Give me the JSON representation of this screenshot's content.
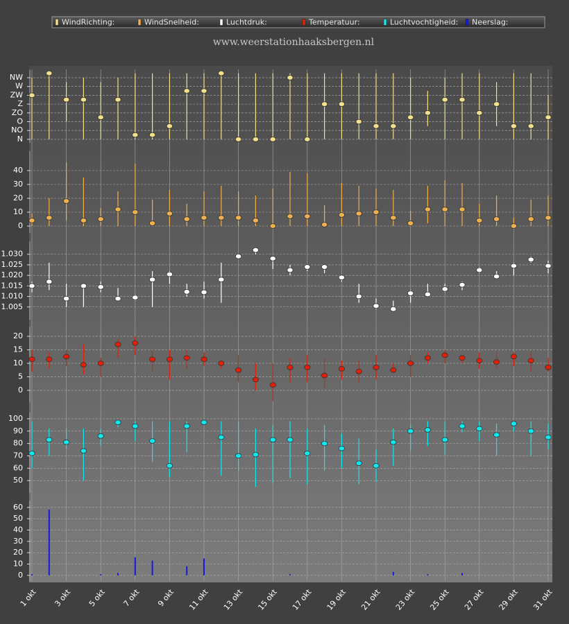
{
  "chart_data": [
    {
      "type": "errorbar",
      "subtitle": "www.weerstationhaaksbergen.nl",
      "series": [
        {
          "name": "WindRichting:",
          "color": "#f2e08a",
          "values": [
            5,
            7.5,
            4.5,
            4.5,
            2.5,
            4.5,
            0.5,
            0.5,
            1.5,
            5.5,
            5.5,
            7.5,
            0,
            0,
            0,
            7,
            0,
            4,
            4,
            2,
            1.5,
            1.5,
            2.5,
            3,
            4.5,
            4.5,
            3,
            4,
            1.5,
            1.5,
            2.5
          ],
          "low": [
            0,
            0,
            2,
            0,
            0,
            0,
            0,
            0,
            0,
            0,
            0,
            0,
            0,
            0,
            0,
            0,
            0,
            0,
            0,
            0,
            0,
            0,
            0,
            1.5,
            0,
            0,
            0,
            1.5,
            0,
            0,
            0
          ],
          "high": [
            7,
            7.5,
            6.5,
            7,
            6.5,
            7,
            7.5,
            7.5,
            7.5,
            7.5,
            7.5,
            7.5,
            7.5,
            7.5,
            7.5,
            7.5,
            7.5,
            7.5,
            7.5,
            7.5,
            7.5,
            7.5,
            7,
            5.5,
            7,
            7.5,
            7.5,
            6.5,
            7.5,
            7.5,
            5
          ]
        }
      ],
      "ylim": [
        -0.4,
        7.9
      ],
      "yticks": [
        {
          "value": 0,
          "label": "N"
        },
        {
          "value": 1,
          "label": "NO"
        },
        {
          "value": 2,
          "label": "O"
        },
        {
          "value": 3,
          "label": "ZO"
        },
        {
          "value": 4,
          "label": "Z"
        },
        {
          "value": 5,
          "label": "ZW"
        },
        {
          "value": 6,
          "label": "W"
        },
        {
          "value": 7,
          "label": "NW"
        }
      ],
      "grid": true
    },
    {
      "type": "errorbar",
      "series": [
        {
          "name": "WindSnelheid:",
          "color": "#f0b050",
          "values": [
            4,
            6,
            18,
            4,
            5,
            12,
            10,
            2,
            9,
            5,
            6,
            6,
            6,
            4,
            0,
            7,
            7,
            1,
            8,
            9,
            10,
            6,
            2,
            12,
            12,
            12,
            4,
            5,
            0,
            5,
            6
          ],
          "low": [
            0,
            0,
            4,
            0,
            0,
            0,
            0,
            0,
            0,
            0,
            0,
            0,
            0,
            0,
            0,
            0,
            0,
            0,
            0,
            0,
            0,
            0,
            0,
            2,
            0,
            0,
            0,
            0,
            0,
            0,
            0
          ],
          "high": [
            9,
            20,
            46,
            35,
            13,
            25,
            45,
            19,
            26,
            16,
            25,
            29,
            25,
            22,
            27,
            39,
            38,
            15,
            31,
            29,
            27,
            26,
            11,
            29,
            33,
            31,
            16,
            22,
            6,
            19,
            22
          ]
        }
      ],
      "ylim": [
        -5,
        54
      ],
      "yticks": [
        0,
        10,
        20,
        30,
        40
      ],
      "grid": true
    },
    {
      "type": "errorbar",
      "series": [
        {
          "name": "Luchtdruk:",
          "color": "#ffffff",
          "values": [
            1.015,
            1.017,
            1.009,
            1.015,
            1.0145,
            1.009,
            1.0095,
            1.018,
            1.0205,
            1.0122,
            1.012,
            1.018,
            1.029,
            1.032,
            1.028,
            1.0225,
            1.024,
            1.024,
            1.019,
            1.01,
            1.0055,
            1.004,
            1.0115,
            1.011,
            1.0135,
            1.0155,
            1.0225,
            1.0195,
            1.0245,
            1.0275,
            1.0245
          ],
          "low": [
            1.012,
            1.013,
            1.005,
            1.005,
            1.012,
            1.008,
            1.008,
            1.005,
            1.016,
            1.01,
            1.009,
            1.007,
            1.028,
            1.03,
            1.023,
            1.02,
            1.022,
            1.021,
            1.017,
            1.007,
            1.004,
            1.003,
            1.007,
            1.01,
            1.012,
            1.013,
            1.021,
            1.019,
            1.02,
            1.026,
            1.021
          ],
          "high": [
            1.017,
            1.026,
            1.016,
            1.016,
            1.017,
            1.014,
            1.011,
            1.022,
            1.022,
            1.016,
            1.017,
            1.026,
            1.03,
            1.033,
            1.029,
            1.025,
            1.025,
            1.025,
            1.02,
            1.016,
            1.009,
            1.008,
            1.013,
            1.016,
            1.016,
            1.017,
            1.024,
            1.022,
            1.026,
            1.029,
            1.027
          ]
        }
      ],
      "ylim": [
        0.999,
        1.036
      ],
      "yticks": [
        1.005,
        {
          "value": 1.01,
          "label": "1.010"
        },
        1.015,
        {
          "value": 1.02,
          "label": "1.020"
        },
        1.025,
        {
          "value": 1.03,
          "label": "1.030"
        }
      ],
      "grid": true
    },
    {
      "type": "errorbar",
      "series": [
        {
          "name": "Temperatuur:",
          "color": "#e02008",
          "values": [
            11.5,
            11.5,
            12.5,
            9.5,
            10,
            17,
            17.5,
            11.5,
            11.5,
            12,
            11.5,
            10,
            7.5,
            4,
            2,
            8.5,
            8.5,
            5.5,
            8,
            7,
            8.5,
            7.5,
            10,
            12,
            13,
            12,
            11,
            10.5,
            12.5,
            11,
            8.5
          ],
          "low": [
            7,
            8,
            9,
            6,
            5,
            12,
            13,
            7,
            4,
            8,
            9,
            8,
            3,
            0,
            -4,
            3,
            3,
            1,
            4,
            3,
            4,
            7,
            5,
            10,
            10,
            10,
            8,
            8,
            9,
            7,
            7
          ],
          "high": [
            15,
            14,
            15,
            17,
            12,
            19,
            20,
            15,
            15,
            15,
            14,
            11,
            13,
            10,
            10,
            12,
            13,
            12,
            11,
            11,
            13,
            10,
            13,
            14,
            15,
            13,
            14,
            14,
            14,
            14,
            12
          ]
        }
      ],
      "ylim": [
        -4.5,
        23.5
      ],
      "yticks": [
        0,
        5,
        10,
        15,
        20
      ],
      "grid": true
    },
    {
      "type": "errorbar",
      "series": [
        {
          "name": "Luchtvochtigheid:",
          "color": "#10e8f0",
          "values": [
            72,
            83,
            81,
            74,
            86,
            97,
            94,
            82,
            62,
            94,
            97,
            85,
            70,
            71,
            83,
            83,
            72,
            80,
            76,
            64,
            62,
            81,
            90,
            91,
            83,
            94,
            92,
            87,
            96,
            90,
            85
          ],
          "low": [
            60,
            70,
            76,
            50,
            78,
            93,
            82,
            65,
            53,
            73,
            95,
            54,
            58,
            45,
            48,
            52,
            47,
            58,
            60,
            47,
            49,
            62,
            74,
            78,
            71,
            89,
            82,
            70,
            90,
            70,
            75
          ],
          "high": [
            98,
            92,
            92,
            92,
            92,
            98,
            98,
            98,
            98,
            98,
            98,
            98,
            98,
            92,
            95,
            98,
            92,
            95,
            88,
            84,
            75,
            92,
            95,
            98,
            98,
            98,
            98,
            96,
            98,
            98,
            96
          ]
        }
      ],
      "ylim": [
        40,
        105
      ],
      "yticks": [
        50,
        60,
        70,
        80,
        90,
        100
      ],
      "grid": true
    },
    {
      "type": "bar",
      "categories": [
        "1 okt",
        null,
        "3 okt",
        null,
        "5 okt",
        null,
        "7 okt",
        null,
        "9 okt",
        null,
        "11 okt",
        null,
        "13 okt",
        null,
        "15 okt",
        null,
        "17 okt",
        null,
        "19 okt",
        null,
        "21 okt",
        null,
        "23 okt",
        null,
        "25 okt",
        null,
        "27 okt",
        null,
        "29 okt",
        null,
        "31 okt"
      ],
      "series": [
        {
          "name": "Neerslag:",
          "color": "#1818d8",
          "values": [
            1,
            58,
            0,
            0,
            1,
            2,
            16,
            13,
            0,
            8,
            15,
            0,
            0,
            0,
            0,
            1,
            0,
            0,
            0,
            0,
            0,
            3,
            0,
            1,
            0,
            2,
            0,
            0,
            0,
            0,
            0
          ]
        }
      ],
      "ylim": [
        -5,
        66
      ],
      "yticks": [
        0,
        10,
        20,
        30,
        40,
        50,
        60
      ],
      "grid": true
    }
  ]
}
